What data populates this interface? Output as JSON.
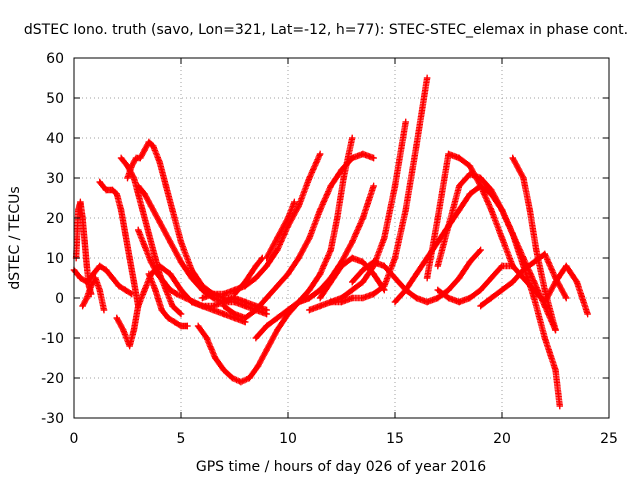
{
  "chart_data": {
    "type": "scatter",
    "title": "dSTEC Iono. truth (savo, Lon=321, Lat=-12, h=77): STEC-STEC_elemax in phase cont.",
    "xlabel": "GPS time / hours of day 026 of year 2016",
    "ylabel": "dSTEC  / TECUs",
    "xlim": [
      0,
      25
    ],
    "ylim": [
      -30,
      60
    ],
    "xticks": [
      0,
      5,
      10,
      15,
      20,
      25
    ],
    "yticks": [
      -30,
      -20,
      -10,
      0,
      10,
      20,
      30,
      40,
      50,
      60
    ],
    "grid": true,
    "marker": "plus",
    "marker_color": "#ff0000",
    "series": [
      {
        "x": [
          0.0,
          0.3,
          0.6,
          0.9,
          1.2,
          1.5,
          1.8,
          2.1,
          2.4,
          2.7
        ],
        "y": [
          7,
          5,
          4,
          6,
          8,
          7,
          5,
          3,
          2,
          1
        ]
      },
      {
        "x": [
          0.1,
          0.2,
          0.3,
          0.4,
          0.5,
          0.6,
          0.7,
          0.8
        ],
        "y": [
          10,
          22,
          24,
          20,
          14,
          8,
          3,
          1
        ]
      },
      {
        "x": [
          0.4,
          0.6,
          0.8,
          1.0,
          1.2,
          1.4
        ],
        "y": [
          -2,
          0,
          3,
          5,
          2,
          -3
        ]
      },
      {
        "x": [
          1.2,
          1.5,
          1.8,
          2.0,
          2.2,
          2.4,
          2.6,
          2.8,
          3.0
        ],
        "y": [
          29,
          27,
          27,
          26,
          22,
          16,
          10,
          4,
          -2
        ]
      },
      {
        "x": [
          2.0,
          2.3,
          2.6,
          2.8,
          3.0,
          3.3,
          3.6,
          4.0,
          4.5,
          5.0,
          5.5,
          6.0,
          6.5,
          7.0,
          7.5
        ],
        "y": [
          -5,
          -8,
          -12,
          -8,
          -2,
          2,
          6,
          8,
          6,
          2,
          -1,
          -2,
          -2,
          -1,
          0
        ]
      },
      {
        "x": [
          2.2,
          2.5,
          2.8,
          3.0,
          3.2,
          3.5,
          3.8,
          4.0,
          4.3,
          4.6,
          5.0
        ],
        "y": [
          35,
          33,
          30,
          26,
          22,
          16,
          10,
          6,
          2,
          -2,
          -4
        ]
      },
      {
        "x": [
          2.5,
          2.7,
          2.9,
          3.1,
          3.3,
          3.5,
          3.7,
          4.0,
          4.3,
          4.6,
          5.0,
          5.5,
          6.0,
          6.5,
          7.0,
          7.5,
          8.0,
          8.5,
          9.0
        ],
        "y": [
          30,
          33,
          35,
          35,
          37,
          39,
          38,
          34,
          28,
          22,
          14,
          7,
          3,
          1,
          0,
          0,
          -1,
          -2,
          -3
        ]
      },
      {
        "x": [
          3.0,
          3.3,
          3.6,
          4.0,
          4.5,
          5.0,
          5.5,
          6.0,
          6.5,
          7.0,
          7.5,
          8.0,
          8.5,
          9.0
        ],
        "y": [
          28,
          26,
          23,
          19,
          14,
          9,
          5,
          2,
          0,
          -1,
          -1,
          -2,
          -3,
          -4
        ]
      },
      {
        "x": [
          3.0,
          3.3,
          3.6,
          3.9,
          4.2,
          4.5,
          4.8,
          5.2,
          5.6,
          6.0,
          6.5,
          7.0,
          7.5,
          8.0
        ],
        "y": [
          17,
          13,
          9,
          6,
          4,
          2,
          1,
          0,
          -1,
          -2,
          -3,
          -4,
          -5,
          -6
        ]
      },
      {
        "x": [
          3.5,
          3.8,
          4.1,
          4.4,
          4.7,
          5.0,
          5.3
        ],
        "y": [
          6,
          2,
          -3,
          -5,
          -6,
          -7,
          -7
        ]
      },
      {
        "x": [
          5.8,
          6.2,
          6.6,
          7.0,
          7.4,
          7.8,
          8.2,
          8.6,
          9.0,
          9.5,
          10.0,
          10.5,
          11.0,
          11.5
        ],
        "y": [
          -7,
          -10,
          -15,
          -18,
          -20,
          -21,
          -20,
          -17,
          -13,
          -8,
          -4,
          -1,
          0,
          2
        ]
      },
      {
        "x": [
          7.0,
          7.5,
          8.0,
          8.5,
          9.0,
          9.5,
          10.0,
          10.5,
          11.0,
          11.5,
          12.0,
          12.5,
          13.0,
          13.5,
          14.0
        ],
        "y": [
          -2,
          -4,
          -5,
          -3,
          0,
          3,
          6,
          10,
          15,
          22,
          28,
          32,
          35,
          36,
          35
        ]
      },
      {
        "x": [
          6.0,
          6.5,
          7.0,
          7.5,
          8.0,
          8.5,
          9.0,
          9.5,
          10.0,
          10.5,
          11.0,
          11.5
        ],
        "y": [
          0,
          1,
          1,
          2,
          3,
          5,
          8,
          12,
          18,
          23,
          30,
          36
        ]
      },
      {
        "x": [
          7.5,
          8.0,
          8.5,
          8.8
        ],
        "y": [
          1,
          4,
          8,
          10
        ]
      },
      {
        "x": [
          9.0,
          9.5,
          10.0,
          10.3
        ],
        "y": [
          10,
          15,
          20,
          24
        ]
      },
      {
        "x": [
          8.5,
          9.0,
          9.5,
          10.0,
          10.5,
          11.0,
          11.5,
          12.0,
          12.5,
          13.0,
          13.5,
          14.0
        ],
        "y": [
          -10,
          -7,
          -5,
          -3,
          -1,
          0,
          2,
          5,
          9,
          14,
          20,
          28
        ]
      },
      {
        "x": [
          10.0,
          10.5,
          11.0,
          11.5,
          12.0,
          12.3,
          12.6,
          13.0
        ],
        "y": [
          -4,
          -1,
          2,
          6,
          12,
          20,
          30,
          40
        ]
      },
      {
        "x": [
          11.0,
          11.5,
          12.0,
          12.5,
          13.0,
          13.5,
          14.0,
          14.5,
          15.0,
          15.5
        ],
        "y": [
          -3,
          -2,
          -1,
          0,
          2,
          4,
          8,
          15,
          28,
          44
        ]
      },
      {
        "x": [
          12.0,
          12.5,
          13.0,
          13.5,
          14.0,
          14.5,
          15.0,
          15.5,
          16.0,
          16.5
        ],
        "y": [
          -1,
          -1,
          0,
          0,
          1,
          3,
          10,
          22,
          38,
          55
        ]
      },
      {
        "x": [
          11.5,
          12.0,
          12.5,
          13.0,
          13.5,
          14.0,
          14.5
        ],
        "y": [
          0,
          4,
          8,
          10,
          9,
          6,
          2
        ]
      },
      {
        "x": [
          13.0,
          13.5,
          14.0,
          14.5,
          15.0,
          15.5,
          16.0,
          16.5,
          17.0,
          17.5,
          18.0,
          18.5,
          19.0
        ],
        "y": [
          4,
          7,
          9,
          8,
          5,
          2,
          0,
          -1,
          0,
          2,
          5,
          9,
          12
        ]
      },
      {
        "x": [
          15.0,
          15.5,
          16.0,
          16.5,
          17.0,
          17.5,
          18.0,
          18.5,
          19.0,
          19.5,
          20.0,
          20.5,
          21.0,
          21.5,
          22.0,
          22.5
        ],
        "y": [
          -1,
          2,
          6,
          10,
          14,
          18,
          22,
          26,
          28,
          26,
          22,
          16,
          10,
          4,
          -2,
          -8
        ]
      },
      {
        "x": [
          16.5,
          17.0,
          17.5,
          18.0,
          18.5,
          19.0,
          19.5,
          20.0,
          20.5
        ],
        "y": [
          5,
          20,
          36,
          35,
          33,
          28,
          22,
          15,
          8
        ]
      },
      {
        "x": [
          17.0,
          17.5,
          18.0,
          18.5,
          19.0,
          19.5,
          20.0,
          20.5,
          21.0,
          21.5,
          22.0,
          22.5,
          22.7
        ],
        "y": [
          8,
          18,
          28,
          31,
          30,
          27,
          22,
          16,
          8,
          0,
          -10,
          -18,
          -27
        ]
      },
      {
        "x": [
          20.5,
          21.0,
          21.3,
          21.6,
          22.0,
          22.5
        ],
        "y": [
          35,
          30,
          22,
          12,
          2,
          -8
        ]
      },
      {
        "x": [
          17.0,
          17.5,
          18.0,
          18.5,
          19.0,
          19.5,
          20.0,
          20.5,
          21.0,
          21.5,
          22.0,
          22.5,
          23.0,
          23.5,
          24.0
        ],
        "y": [
          2,
          0,
          -1,
          0,
          2,
          5,
          8,
          8,
          5,
          2,
          -1,
          4,
          8,
          4,
          -4
        ]
      },
      {
        "x": [
          19.0,
          19.5,
          20.0,
          20.5,
          21.0,
          21.5,
          22.0,
          22.5,
          23.0
        ],
        "y": [
          -2,
          0,
          2,
          4,
          7,
          9,
          11,
          5,
          0
        ]
      }
    ]
  }
}
